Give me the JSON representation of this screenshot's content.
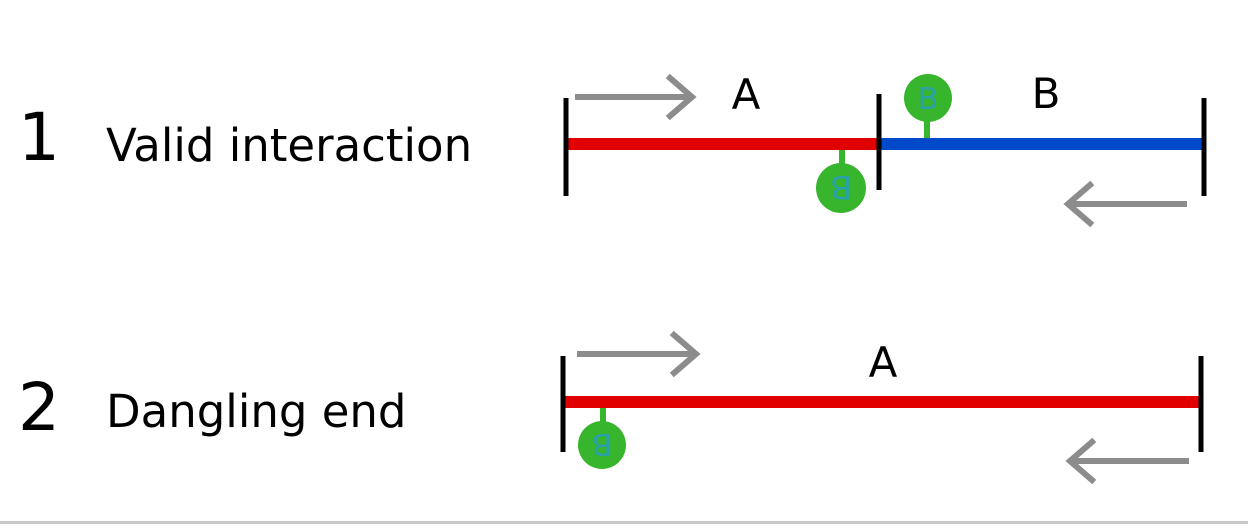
{
  "colors": {
    "fragment_a": "#e00000",
    "fragment_b": "#0049c8",
    "boundary": "#000000",
    "arrow": "#8c8c8c",
    "bead": "#37b52c",
    "bead_text": "#2aa0a8"
  },
  "icons": {
    "arrow": "arrow-icon",
    "bead": "biotin-bead-icon"
  },
  "bead_label": "B",
  "rows": [
    {
      "number": "1",
      "label": "Valid interaction",
      "fragment_labels": [
        "A",
        "B"
      ]
    },
    {
      "number": "2",
      "label": "Dangling end",
      "fragment_labels": [
        "A"
      ]
    }
  ]
}
